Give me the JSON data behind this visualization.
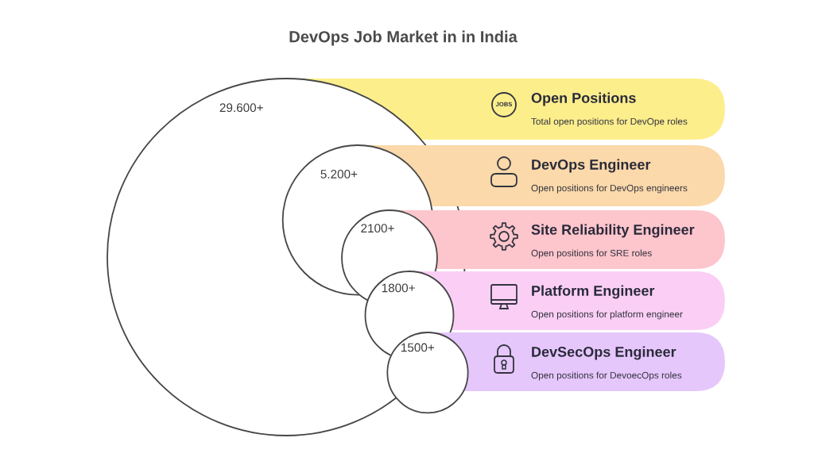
{
  "chart_data": {
    "type": "other",
    "title": "DevOps Job Market in in India",
    "categories": [
      "Open Positions",
      "DevOps Engineer",
      "Site Reliability Engineer",
      "Platform Engineer",
      "DevSecOps Engineer"
    ],
    "values": [
      29600,
      5200,
      2100,
      1800,
      1500
    ],
    "value_labels": [
      "29.600+",
      "5.200+",
      "2100+",
      "1800+",
      "1500+"
    ],
    "annotations": [
      "Total open positions for DevOpe roles",
      "Open positions for DevOps engineers",
      "Open positions for SRE roles",
      "Open positions for platform engineer",
      "Open positions for DevoecOps roles",
      "JOBS"
    ]
  }
}
